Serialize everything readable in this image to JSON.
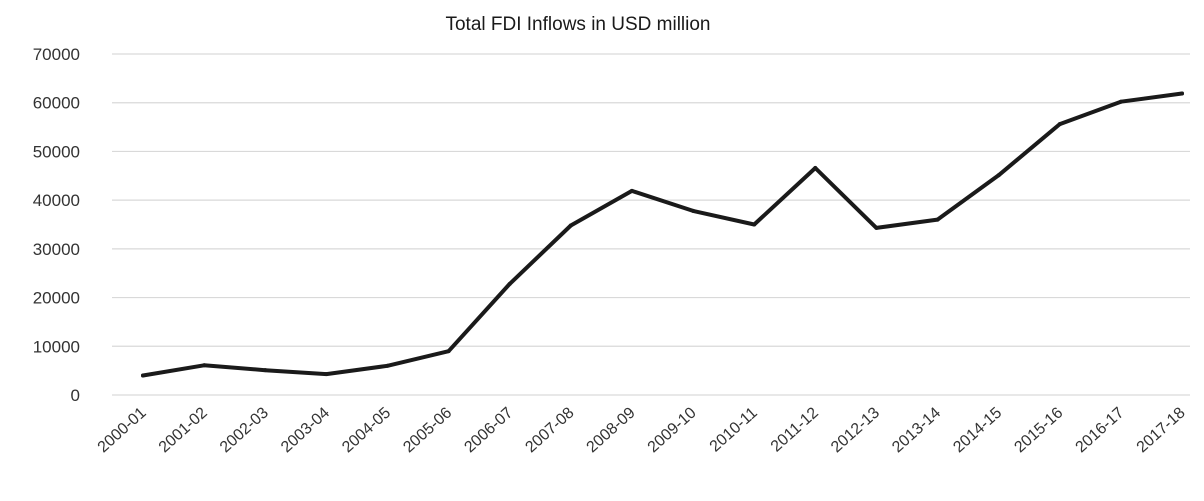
{
  "chart_data": {
    "type": "line",
    "title": "Total FDI Inflows in USD million",
    "xlabel": "",
    "ylabel": "",
    "categories": [
      "2000-01",
      "2001-02",
      "2002-03",
      "2003-04",
      "2004-05",
      "2005-06",
      "2006-07",
      "2007-08",
      "2008-09",
      "2009-10",
      "2010-11",
      "2011-12",
      "2012-13",
      "2013-14",
      "2014-15",
      "2015-16",
      "2016-17",
      "2017-18"
    ],
    "series": [
      {
        "values": [
          4000,
          6100,
          5100,
          4300,
          6000,
          9000,
          22800,
          34800,
          41900,
          37800,
          35000,
          46600,
          34300,
          36000,
          45100,
          55600,
          60200,
          61900
        ]
      }
    ],
    "ylim": [
      0,
      70000
    ],
    "yticks": [
      0,
      10000,
      20000,
      30000,
      40000,
      50000,
      60000,
      70000
    ],
    "grid": true,
    "legend": "none",
    "line_color": "#1a1a1a"
  }
}
